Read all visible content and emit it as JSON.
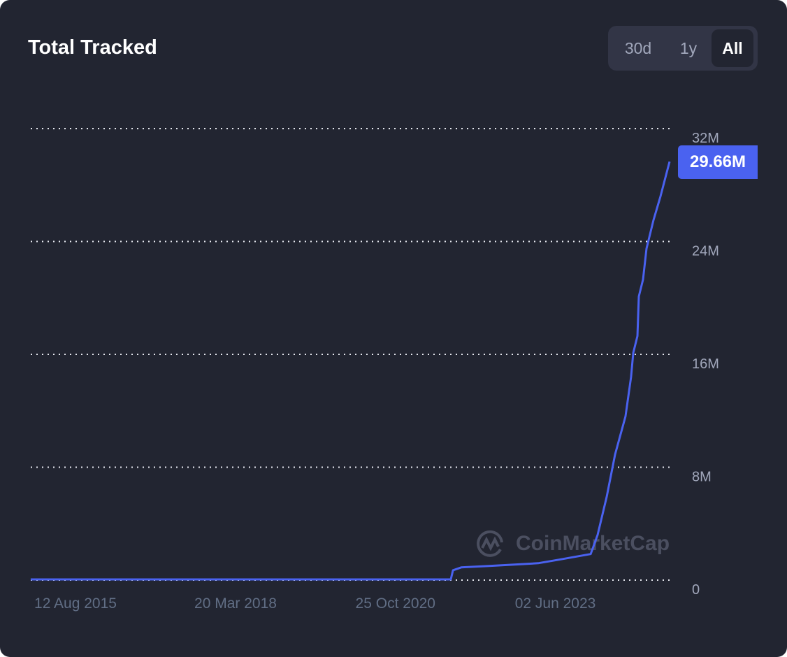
{
  "header": {
    "title": "Total Tracked"
  },
  "range_selector": {
    "options": [
      "30d",
      "1y",
      "All"
    ],
    "selected": "All"
  },
  "watermark": "CoinMarketCap",
  "colors": {
    "line": "#4a62f0",
    "background": "#222531",
    "badge": "#4a62f0"
  },
  "chart_data": {
    "type": "line",
    "title": "Total Tracked",
    "grid": true,
    "ylim": [
      0,
      32000000
    ],
    "y_ticks": [
      {
        "value": 0,
        "label": "0"
      },
      {
        "value": 8000000,
        "label": "8M"
      },
      {
        "value": 16000000,
        "label": "16M"
      },
      {
        "value": 24000000,
        "label": "24M"
      },
      {
        "value": 32000000,
        "label": "32M"
      }
    ],
    "x_ticks": [
      {
        "date": "2015-08-12",
        "label": "12 Aug 2015"
      },
      {
        "date": "2018-03-20",
        "label": "20 Mar 2018"
      },
      {
        "date": "2020-10-25",
        "label": "25 Oct 2020"
      },
      {
        "date": "2023-06-02",
        "label": "02 Jun 2023"
      }
    ],
    "current_value_label": "29.66M",
    "series": [
      {
        "points": [
          [
            "2014-11-19",
            50000
          ],
          [
            "2021-09-19",
            50000
          ],
          [
            "2021-10-02",
            700000
          ],
          [
            "2021-11-20",
            900000
          ],
          [
            "2022-05-05",
            1000000
          ],
          [
            "2023-02-20",
            1200000
          ],
          [
            "2023-06-25",
            1450000
          ],
          [
            "2023-12-29",
            1850000
          ],
          [
            "2024-02-08",
            3200000
          ],
          [
            "2024-04-02",
            5900000
          ],
          [
            "2024-05-22",
            8900000
          ],
          [
            "2024-07-23",
            11600000
          ],
          [
            "2024-08-25",
            14400000
          ],
          [
            "2024-09-07",
            16100000
          ],
          [
            "2024-10-02",
            17300000
          ],
          [
            "2024-10-10",
            20100000
          ],
          [
            "2024-11-04",
            21300000
          ],
          [
            "2024-11-25",
            23500000
          ],
          [
            "2025-01-05",
            25500000
          ],
          [
            "2025-02-16",
            27200000
          ],
          [
            "2025-04-11",
            29660000
          ]
        ]
      }
    ]
  }
}
